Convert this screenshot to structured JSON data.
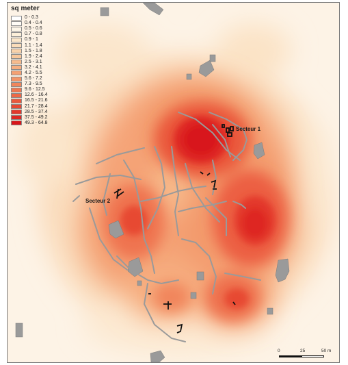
{
  "legend": {
    "title": "sq meter",
    "classes": [
      {
        "label": "0 - 0.3",
        "color": "#ffffff"
      },
      {
        "label": "0.4 - 0.4",
        "color": "#fffcf6"
      },
      {
        "label": "0.5 - 0.6",
        "color": "#fdf6e8"
      },
      {
        "label": "0.7 - 0.8",
        "color": "#fcefd9"
      },
      {
        "label": "0.9 - 1",
        "color": "#fbe6c9"
      },
      {
        "label": "1.1 - 1.4",
        "color": "#fadcb9"
      },
      {
        "label": "1.5 - 1.8",
        "color": "#f9d2aa"
      },
      {
        "label": "1.9 - 2.4",
        "color": "#f8c79b"
      },
      {
        "label": "2.5 - 3.1",
        "color": "#f7bb8d"
      },
      {
        "label": "3.2 - 4.1",
        "color": "#f6ae80"
      },
      {
        "label": "4.2 - 5.5",
        "color": "#f5a173"
      },
      {
        "label": "5.6 - 7.2",
        "color": "#f39467"
      },
      {
        "label": "7.3 - 9.5",
        "color": "#f1865b"
      },
      {
        "label": "9.6 - 12.5",
        "color": "#ef7750"
      },
      {
        "label": "12.6 - 16.4",
        "color": "#ed6846"
      },
      {
        "label": "16.5 - 21.6",
        "color": "#ea583c"
      },
      {
        "label": "21.7 - 28.4",
        "color": "#e74833"
      },
      {
        "label": "28.5 - 37.4",
        "color": "#e3382b"
      },
      {
        "label": "37.5 - 49.2",
        "color": "#de2722"
      },
      {
        "label": "49.3 - 64.8",
        "color": "#d8161a"
      }
    ]
  },
  "labels": {
    "sector1": "Secteur 1",
    "sector2": "Secteur 2"
  },
  "scale": {
    "ticks": [
      "0",
      "25",
      "50 m"
    ]
  }
}
